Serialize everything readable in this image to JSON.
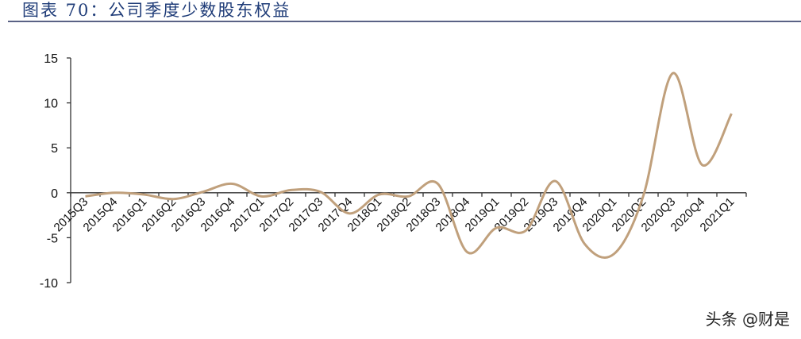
{
  "header": {
    "title": "图表 70：公司季度少数股东权益"
  },
  "watermark": "头条 @财是",
  "colors": {
    "line": "#c0a07c",
    "title": "#1f3c78",
    "axis": "#333333"
  },
  "chart_data": {
    "type": "line",
    "smooth": true,
    "title": "",
    "xlabel": "",
    "ylabel": "",
    "ylim": [
      -10,
      15
    ],
    "yticks": [
      -10,
      -5,
      0,
      5,
      10,
      15
    ],
    "grid": false,
    "legend": "none",
    "categories": [
      "2015Q3",
      "2015Q4",
      "2016Q1",
      "2016Q2",
      "2016Q3",
      "2016Q4",
      "2017Q1",
      "2017Q2",
      "2017Q3",
      "2017Q4",
      "2018Q1",
      "2018Q2",
      "2018Q3",
      "2018Q4",
      "2019Q1",
      "2019Q2",
      "2019Q3",
      "2019Q4",
      "2020Q1",
      "2020Q2",
      "2020Q3",
      "2020Q4",
      "2021Q1"
    ],
    "values": [
      -0.4,
      0.0,
      -0.2,
      -0.7,
      0.1,
      1.0,
      -0.4,
      0.3,
      0.1,
      -2.3,
      -0.2,
      -0.4,
      1.0,
      -6.6,
      -3.9,
      -4.2,
      1.3,
      -5.7,
      -6.8,
      -0.3,
      13.3,
      3.1,
      8.8
    ]
  }
}
